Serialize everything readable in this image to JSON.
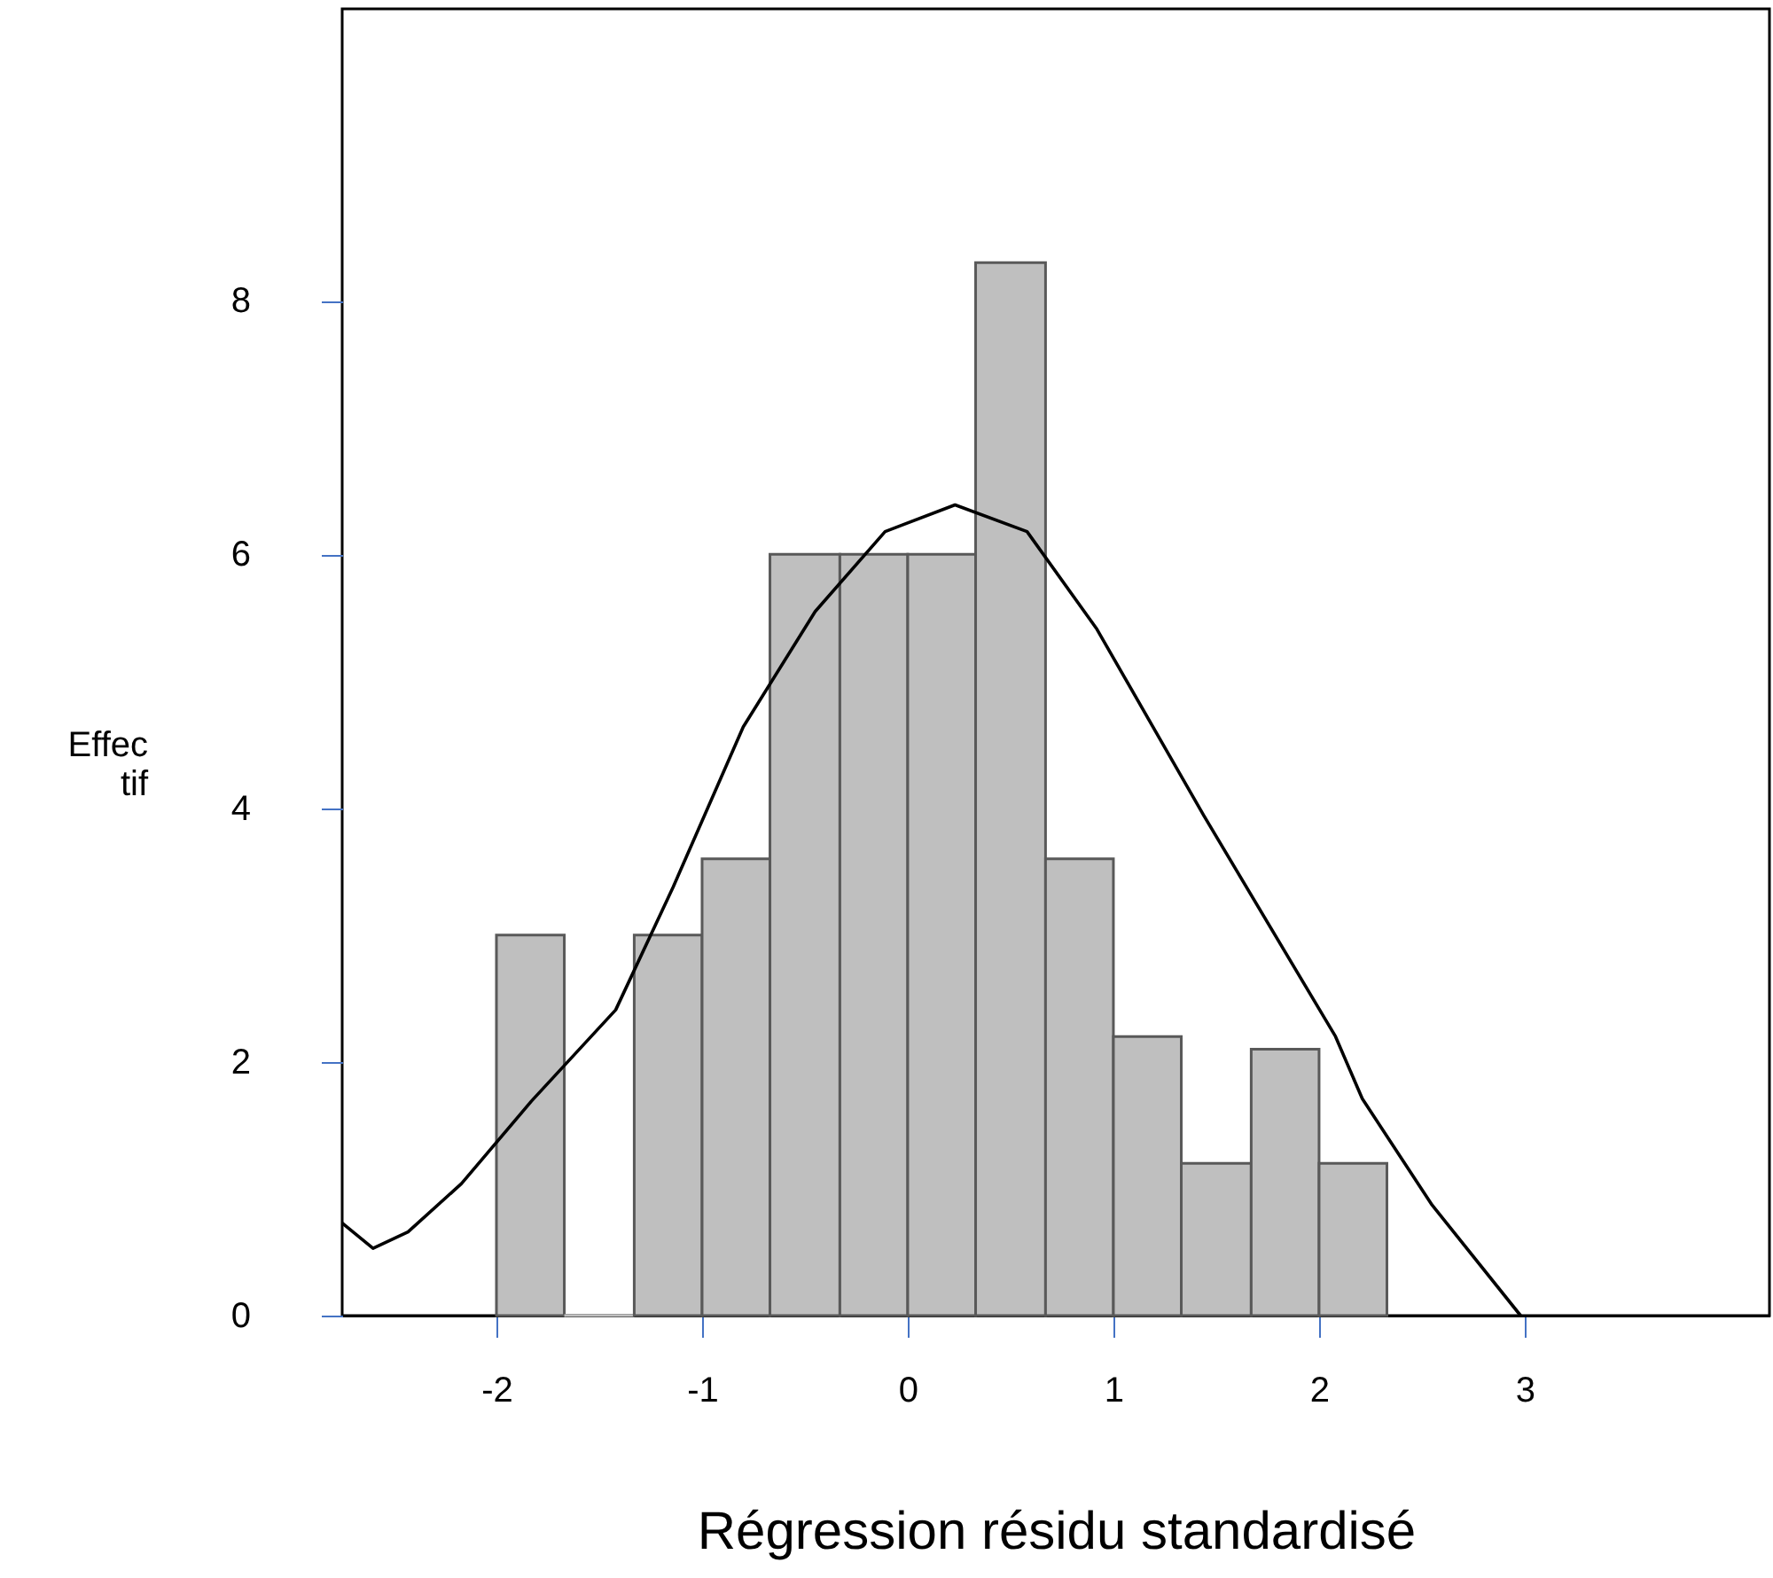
{
  "chart_data": {
    "type": "histogram",
    "xlabel": "Régression résidu standardisé",
    "ylabel": "Effec\ntif",
    "xlim": [
      -2.75,
      4.19
    ],
    "ylim": [
      0,
      10.3
    ],
    "xticks": [
      -2,
      -1,
      0,
      1,
      2,
      3
    ],
    "yticks": [
      0,
      2,
      4,
      6,
      8
    ],
    "grid": false,
    "series": [
      {
        "color": "#bfbfbf",
        "bins": [
          -2,
          -1.67,
          -1.33,
          -1,
          -0.67,
          -0.33,
          0,
          0.33,
          0.67,
          1,
          1.33,
          1.67,
          2,
          2.33
        ],
        "values": [
          3,
          0,
          3,
          3.6,
          6,
          6,
          6,
          8.3,
          3.6,
          2.2,
          1.2,
          2.1,
          1.2
        ]
      },
      {
        "type": "line",
        "color": "#000000",
        "marker": "none",
        "x": [
          -2.75,
          -2.6,
          -2.43,
          -2.17,
          -1.83,
          -1.42,
          -1.14,
          -0.8,
          -0.45,
          -0.11,
          0.23,
          0.58,
          0.92,
          1.44,
          2.08,
          2.21,
          2.55,
          2.98
        ],
        "values": [
          0.73,
          0.53,
          0.66,
          1.04,
          1.69,
          2.41,
          3.38,
          4.64,
          5.55,
          6.18,
          6.39,
          6.18,
          5.41,
          3.94,
          2.2,
          1.71,
          0.87,
          0
        ]
      }
    ]
  }
}
